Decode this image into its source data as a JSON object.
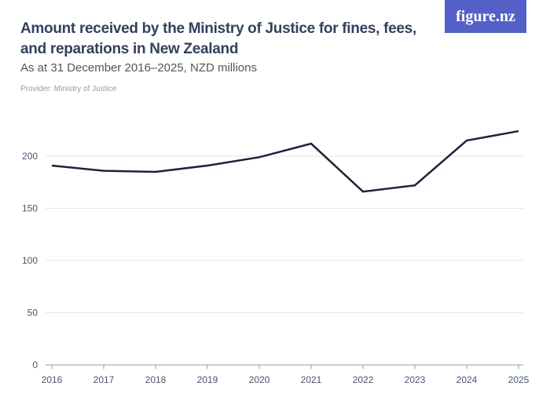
{
  "header": {
    "title": "Amount received by the Ministry of Justice for fines, fees, and reparations in New Zealand",
    "subtitle": "As at 31 December 2016–2025, NZD millions",
    "provider": "Provider: Ministry of Justice",
    "logo": "figure.nz"
  },
  "colors": {
    "line": "#2e1a3a",
    "logo_bg": "#5360c8",
    "grid": "#e6e6e6"
  },
  "chart_data": {
    "type": "line",
    "x": [
      "2016",
      "2017",
      "2018",
      "2019",
      "2020",
      "2021",
      "2022",
      "2023",
      "2024",
      "2025"
    ],
    "values": [
      191,
      186,
      185,
      191,
      199,
      212,
      166,
      172,
      215,
      224
    ],
    "yticks": [
      0,
      50,
      100,
      150,
      200
    ],
    "ylim": [
      0,
      230
    ],
    "grid": true,
    "title": "Amount received by the Ministry of Justice for fines, fees, and reparations in New Zealand",
    "subtitle": "As at 31 December 2016–2025, NZD millions"
  }
}
